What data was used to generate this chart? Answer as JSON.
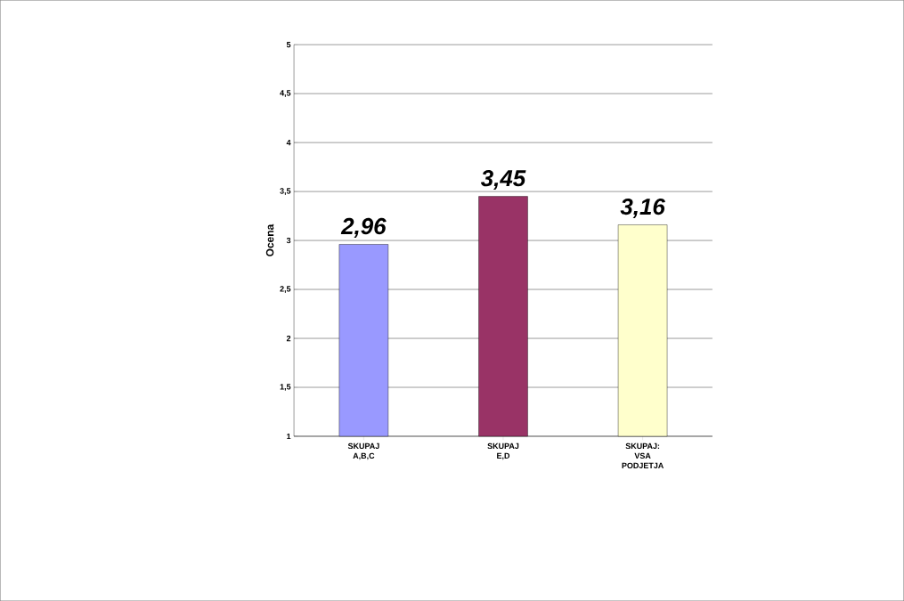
{
  "chart_data": {
    "type": "bar",
    "ylabel": "Ocena",
    "categories": [
      "SKUPAJ A,B,C",
      "SKUPAJ E,D",
      "SKUPAJ: VSA PODJETJA"
    ],
    "values": [
      2.96,
      3.45,
      3.16
    ],
    "colors": [
      "#9999ff",
      "#993366",
      "#ffffcc"
    ],
    "value_labels": [
      "2,96",
      "3,45",
      "3,16"
    ],
    "ylim": [
      1,
      5
    ],
    "yticks": [
      1,
      {
        "value": 1.5,
        "label": "1,5"
      },
      2,
      {
        "value": 2.5,
        "label": "2,5"
      },
      3,
      {
        "value": 3.5,
        "label": "3,5"
      },
      4,
      {
        "value": 4.5,
        "label": "4,5"
      },
      5
    ],
    "grid": "y"
  }
}
